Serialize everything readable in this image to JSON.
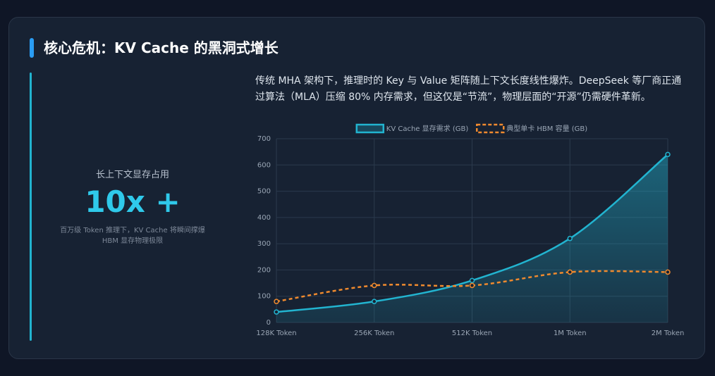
{
  "header": {
    "title": "核心危机：KV Cache 的黑洞式增长"
  },
  "stat": {
    "label": "长上下文显存占用",
    "value": "10x +",
    "note": "百万级 Token 推理下，KV Cache 将瞬间撑爆 HBM 显存物理极限"
  },
  "description": "传统 MHA 架构下，推理时的 Key 与 Value 矩阵随上下文长度线性爆炸。DeepSeek 等厂商正通过算法（MLA）压缩 80% 内存需求，但这仅是“节流”，物理层面的“开源”仍需硬件革新。",
  "chart_data": {
    "type": "line",
    "categories": [
      "128K Token",
      "256K Token",
      "512K Token",
      "1M Token",
      "2M Token"
    ],
    "series": [
      {
        "name": "KV Cache 显存需求 (GB)",
        "color": "#22b4d0",
        "values": [
          40,
          80,
          160,
          320,
          640
        ],
        "fill": true,
        "dashed": false
      },
      {
        "name": "典型单卡 HBM 容量 (GB)",
        "color": "#f08a2e",
        "values": [
          80,
          141,
          141,
          192,
          192
        ],
        "fill": false,
        "dashed": true
      }
    ],
    "ylim": [
      0,
      700
    ],
    "yticks": [
      0,
      100,
      200,
      300,
      400,
      500,
      600,
      700
    ],
    "grid": true,
    "legend": "top"
  }
}
